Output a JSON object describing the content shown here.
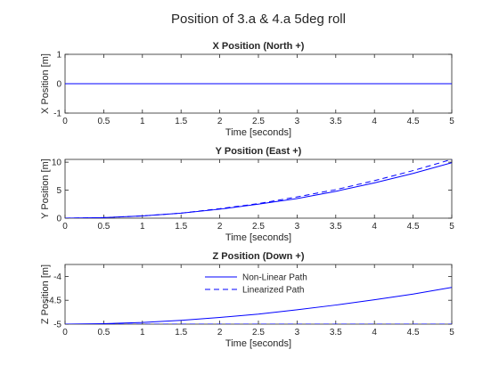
{
  "figure_title": "Position of 3.a & 4.a 5deg roll",
  "colors": {
    "series": "#0000ff",
    "axis": "#262626",
    "background": "#ffffff"
  },
  "legend": {
    "location": "top-center of third subplot",
    "entries": [
      {
        "name": "Non-Linear Path",
        "style": "solid"
      },
      {
        "name": "Linearized Path",
        "style": "dashed"
      }
    ]
  },
  "chart_data": [
    {
      "type": "line",
      "title": "X Position (North +)",
      "xlabel": "Time [seconds]",
      "ylabel": "X Position [m]",
      "xlim": [
        0,
        5
      ],
      "ylim": [
        -1,
        1
      ],
      "xticks": [
        "0",
        "0.5",
        "1",
        "1.5",
        "2",
        "2.5",
        "3",
        "3.5",
        "4",
        "4.5",
        "5"
      ],
      "yticks": [
        "-1",
        "0",
        "1"
      ],
      "grid": false,
      "series": [
        {
          "style": "solid",
          "x": [
            0,
            5
          ],
          "y": [
            0,
            0
          ]
        },
        {
          "style": "dashed",
          "x": [
            0,
            5
          ],
          "y": [
            0,
            0
          ]
        }
      ]
    },
    {
      "type": "line",
      "title": "Y Position (East +)",
      "xlabel": "Time [seconds]",
      "ylabel": "Y Position [m]",
      "xlim": [
        0,
        5
      ],
      "ylim": [
        0,
        10.5
      ],
      "xticks": [
        "0",
        "0.5",
        "1",
        "1.5",
        "2",
        "2.5",
        "3",
        "3.5",
        "4",
        "4.5",
        "5"
      ],
      "yticks": [
        "0",
        "5",
        "10"
      ],
      "grid": false,
      "series": [
        {
          "style": "solid",
          "x": [
            0,
            0.5,
            1,
            1.5,
            2,
            2.5,
            3,
            3.5,
            4,
            4.5,
            5
          ],
          "y": [
            0,
            0.1,
            0.4,
            0.9,
            1.6,
            2.5,
            3.5,
            4.8,
            6.3,
            8.0,
            9.9
          ]
        },
        {
          "style": "dashed",
          "x": [
            0,
            0.5,
            1,
            1.5,
            2,
            2.5,
            3,
            3.5,
            4,
            4.5,
            5
          ],
          "y": [
            0,
            0.1,
            0.4,
            0.9,
            1.7,
            2.6,
            3.8,
            5.1,
            6.7,
            8.5,
            10.5
          ]
        }
      ]
    },
    {
      "type": "line",
      "title": "Z Position (Down +)",
      "xlabel": "Time [seconds]",
      "ylabel": "Z Position [m]",
      "xlim": [
        0,
        5
      ],
      "ylim": [
        -5,
        -3.75
      ],
      "xticks": [
        "0",
        "0.5",
        "1",
        "1.5",
        "2",
        "2.5",
        "3",
        "3.5",
        "4",
        "4.5",
        "5"
      ],
      "yticks": [
        "-5",
        "-4.5",
        "-4"
      ],
      "grid": false,
      "series": [
        {
          "name": "Non-Linear Path",
          "style": "solid",
          "x": [
            0,
            0.5,
            1,
            1.5,
            2,
            2.5,
            3,
            3.5,
            4,
            4.5,
            5
          ],
          "y": [
            -5.0,
            -4.99,
            -4.965,
            -4.92,
            -4.86,
            -4.79,
            -4.7,
            -4.6,
            -4.49,
            -4.37,
            -4.23
          ]
        },
        {
          "name": "Linearized Path",
          "style": "dashed",
          "x": [
            0,
            5
          ],
          "y": [
            -5.0,
            -5.0
          ]
        }
      ]
    }
  ]
}
